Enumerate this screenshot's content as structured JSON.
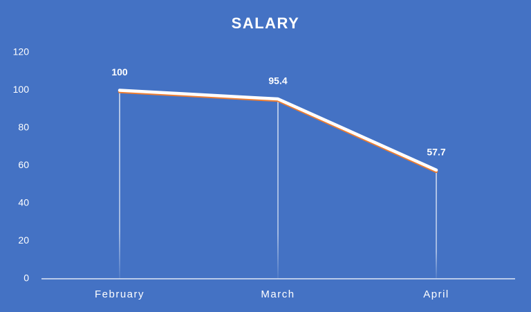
{
  "chart_data": {
    "type": "line",
    "title": "SALARY",
    "categories": [
      "February",
      "March",
      "April"
    ],
    "values": [
      100,
      95.4,
      57.7
    ],
    "color": "#ffffff",
    "shadow_color": "#ed7d31",
    "ylim": [
      0,
      120
    ],
    "yticks": [
      0,
      20,
      40,
      60,
      80,
      100,
      120
    ],
    "drop_lines": true,
    "data_labels": true,
    "grid": false
  }
}
